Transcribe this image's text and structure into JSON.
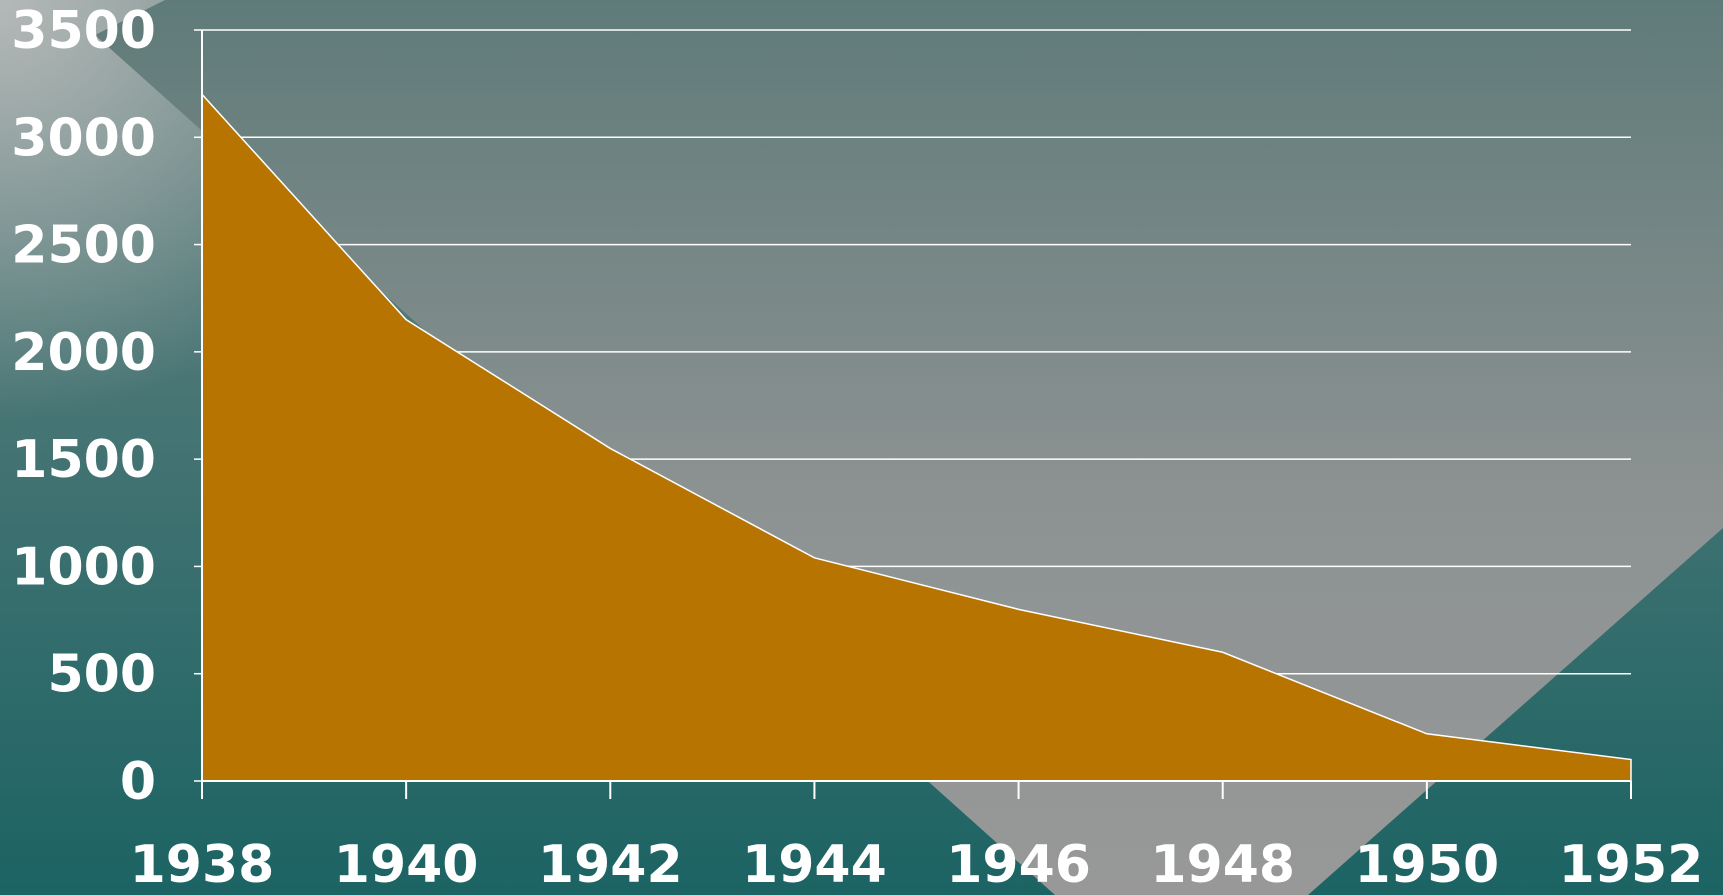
{
  "chart_data": {
    "type": "area",
    "x": [
      1938,
      1940,
      1942,
      1944,
      1946,
      1948,
      1950,
      1952
    ],
    "values": [
      3200,
      2150,
      1550,
      1040,
      800,
      600,
      220,
      100
    ],
    "color": "#b87400",
    "xlim": [
      1938,
      1952
    ],
    "xticks": [
      1938,
      1940,
      1942,
      1944,
      1946,
      1948,
      1950,
      1952
    ],
    "ylim": [
      0,
      3500
    ],
    "yticks": [
      0,
      500,
      1000,
      1500,
      2000,
      2500,
      3000,
      3500
    ],
    "grid": true
  }
}
